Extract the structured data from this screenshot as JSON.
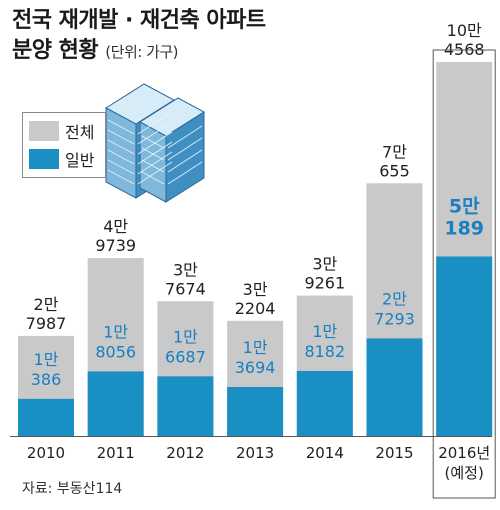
{
  "title_line1": "전국 재개발 · 재건축 아파트",
  "title_line2": "분양 현황",
  "title_unit": "(단위: 가구)",
  "legend": {
    "total_label": "전체",
    "general_label": "일반"
  },
  "source": "자료: 부동산114",
  "colors": {
    "total": "#c9c9c9",
    "general": "#1a8fc4",
    "highlight_text": "#1a7fc0"
  },
  "chart_data": {
    "type": "bar",
    "categories": [
      "2010",
      "2011",
      "2012",
      "2013",
      "2014",
      "2015",
      "2016년"
    ],
    "category_notes": [
      "",
      "",
      "",
      "",
      "",
      "",
      "(예정)"
    ],
    "series": [
      {
        "name": "전체",
        "values": [
          27987,
          49739,
          37674,
          32204,
          39261,
          70655,
          104568
        ],
        "labels": [
          [
            "2만",
            "7987"
          ],
          [
            "4만",
            "9739"
          ],
          [
            "3만",
            "7674"
          ],
          [
            "3만",
            "2204"
          ],
          [
            "3만",
            "9261"
          ],
          [
            "7만",
            "655"
          ],
          [
            "10만",
            "4568"
          ]
        ]
      },
      {
        "name": "일반",
        "values": [
          10386,
          18056,
          16687,
          13694,
          18182,
          27293,
          50189
        ],
        "labels": [
          [
            "1만",
            "386"
          ],
          [
            "1만",
            "8056"
          ],
          [
            "1만",
            "6687"
          ],
          [
            "1만",
            "3694"
          ],
          [
            "1만",
            "8182"
          ],
          [
            "2만",
            "7293"
          ],
          [
            "5만",
            "189"
          ]
        ]
      }
    ],
    "ylim": [
      0,
      104568
    ],
    "xlabel": "",
    "ylabel": ""
  }
}
